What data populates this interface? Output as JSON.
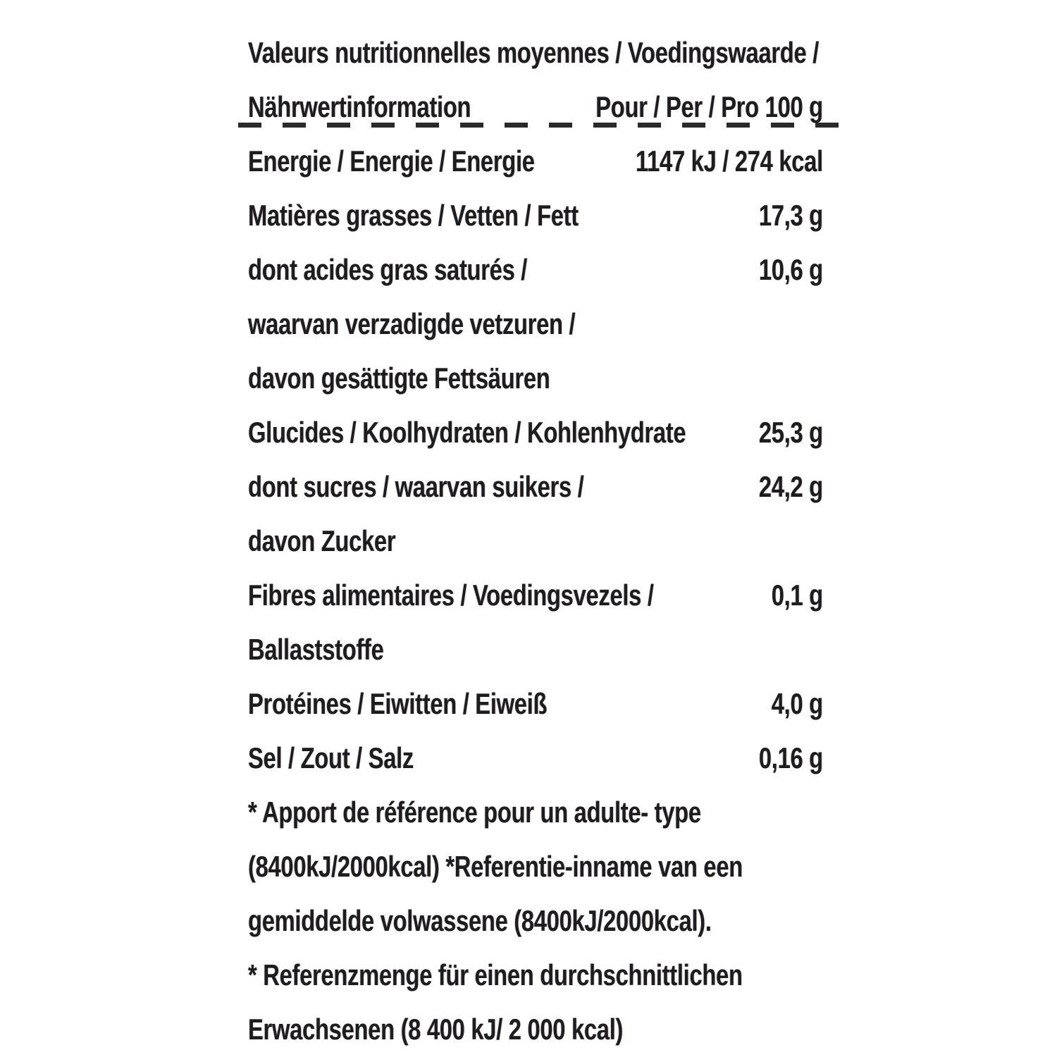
{
  "page": {
    "background_color": "#ffffff",
    "text_color": "#1d1d1d"
  },
  "table": {
    "title_line1": "Valeurs nutritionnelles moyennes / Voedingswaarde /",
    "title_line2_left": "Nährwertinformation",
    "title_line2_right": "Pour / Per / Pro 100 g",
    "rows": [
      {
        "label": "Energie / Energie / Energie",
        "value": "1147 kJ / 274 kcal"
      },
      {
        "label": "Matières grasses / Vetten / Fett",
        "value": "17,3 g"
      },
      {
        "label": "dont acides gras saturés /",
        "value": "10,6 g"
      },
      {
        "label": "waarvan verzadigde vetzuren /",
        "value": ""
      },
      {
        "label": "davon gesättigte Fettsäuren",
        "value": ""
      },
      {
        "label": "Glucides / Koolhydraten / Kohlenhydrate",
        "value": "25,3 g"
      },
      {
        "label": "dont sucres / waarvan suikers /",
        "value": "24,2 g"
      },
      {
        "label": "davon Zucker",
        "value": ""
      },
      {
        "label": "Fibres alimentaires / Voedingsvezels /",
        "value": "0,1 g"
      },
      {
        "label": "Ballaststoffe",
        "value": ""
      },
      {
        "label": "Protéines / Eiwitten / Eiweiß",
        "value": "4,0 g"
      },
      {
        "label": "Sel / Zout / Salz",
        "value": "0,16 g"
      }
    ],
    "footnotes": [
      "* Apport de référence pour un adulte- type",
      "(8400kJ/2000kcal) *Referentie-inname van een",
      "gemiddelde volwassene (8400kJ/2000kcal).",
      "* Referenzmenge für einen durchschnittlichen",
      "Erwachsenen (8 400 kJ/ 2 000 kcal)"
    ]
  }
}
